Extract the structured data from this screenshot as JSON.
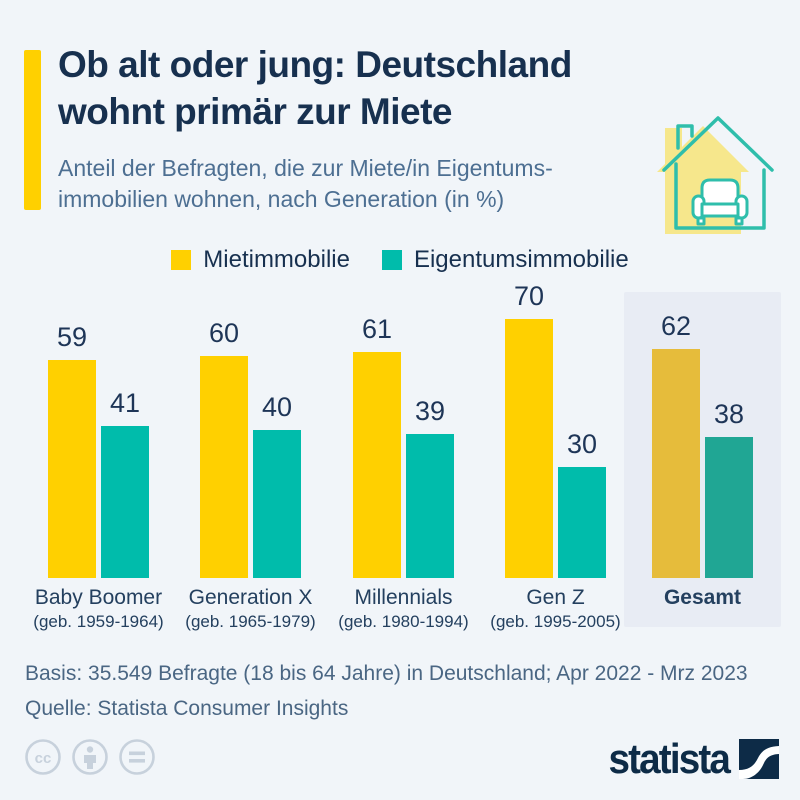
{
  "header": {
    "title_line1": "Ob alt oder jung: Deutschland",
    "title_line2": "wohnt primär zur Miete",
    "subtitle_line1": "Anteil der Befragten, die zur Miete/in Eigentums-",
    "subtitle_line2": "immobilien wohnen, nach Generation (in %)",
    "accent_color": "#FFD000"
  },
  "icons": {
    "header_icon": "house-couch-icon",
    "license_icons": [
      "cc-icon",
      "attribution-person-icon",
      "no-derivatives-equals-icon"
    ],
    "logo_mark": "statista-swoosh-icon"
  },
  "legend": [
    {
      "label": "Mietimmobilie",
      "color": "#FFD000"
    },
    {
      "label": "Eigentumsimmobilie",
      "color": "#00BCAB"
    }
  ],
  "chart_data": {
    "type": "bar",
    "unit": "%",
    "title": "Ob alt oder jung: Deutschland wohnt primär zur Miete",
    "subtitle": "Anteil der Befragten, die zur Miete/in Eigentumsimmobilien wohnen, nach Generation (in %)",
    "series_names": [
      "Mietimmobilie",
      "Eigentumsimmobilie"
    ],
    "categories": [
      {
        "label": "Baby Boomer",
        "sublabel": "(geb. 1959-1964)",
        "values": [
          59,
          41
        ],
        "highlighted": false
      },
      {
        "label": "Generation X",
        "sublabel": "(geb. 1965-1979)",
        "values": [
          60,
          40
        ],
        "highlighted": false
      },
      {
        "label": "Millennials",
        "sublabel": "(geb. 1980-1994)",
        "values": [
          61,
          39
        ],
        "highlighted": false
      },
      {
        "label": "Gen Z",
        "sublabel": "(geb. 1995-2005)",
        "values": [
          70,
          30
        ],
        "highlighted": false
      },
      {
        "label": "Gesamt",
        "sublabel": "",
        "values": [
          62,
          38
        ],
        "highlighted": true
      }
    ],
    "colors": {
      "miet": "#FFD000",
      "eigentum": "#00BCAB",
      "miet_highlight": "#E6BC3B",
      "eigentum_highlight": "#20A694",
      "highlight_panel": "#E8ECF4"
    },
    "ylim": [
      0,
      75
    ],
    "value_labels_shown": true,
    "grid": false,
    "legend_position": "top-center"
  },
  "footer": {
    "basis": "Basis: 35.549 Befragte (18 bis 64 Jahre) in Deutschland; Apr 2022 - Mrz 2023",
    "quelle": "Quelle: Statista Consumer Insights"
  },
  "branding": {
    "logo_text": "statista"
  }
}
